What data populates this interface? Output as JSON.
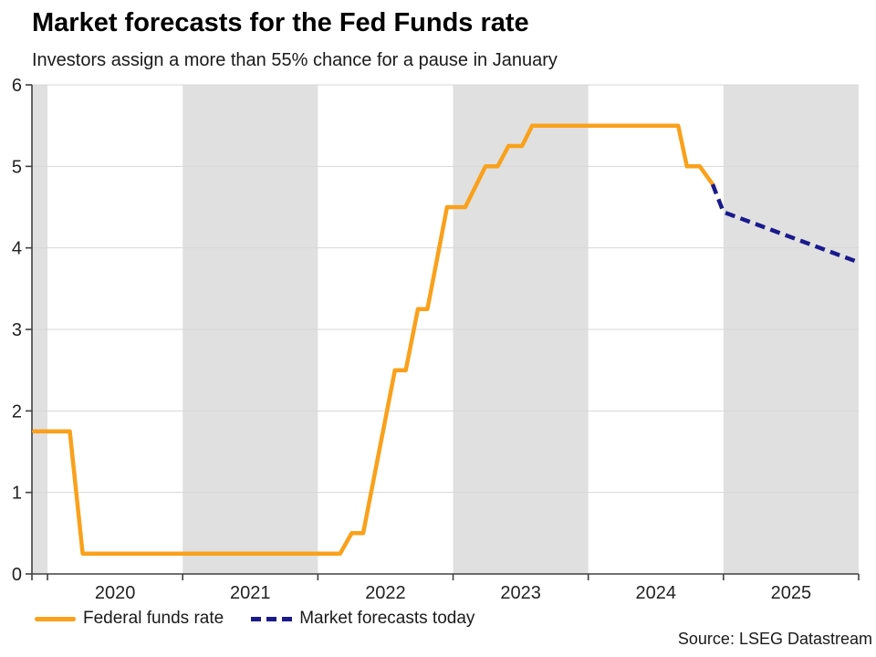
{
  "header": {
    "title": "Market forecasts for the Fed Funds rate",
    "subtitle": "Investors assign a more than 55% chance for a pause in January"
  },
  "footer": {
    "source": "Source: LSEG Datastream"
  },
  "legend": {
    "items": [
      {
        "label": "Federal funds rate",
        "style": "solid",
        "color": "#F9A11B"
      },
      {
        "label": "Market forecasts today",
        "style": "dashed",
        "color": "#1A1A8C"
      }
    ]
  },
  "colors": {
    "federal_funds_line": "#F9A11B",
    "forecast_line": "#1A1A8C",
    "year_band": "#E0E0E0",
    "gridline": "#D7D7D7",
    "axis": "#404040",
    "tick_text": "#222222"
  },
  "chart_data": {
    "type": "line",
    "title": "Market forecasts for the Fed Funds rate",
    "subtitle": "Investors assign a more than 55% chance for a pause in January",
    "xlabel": "",
    "ylabel": "",
    "ylim": [
      0,
      6
    ],
    "yticks": [
      0,
      1,
      2,
      3,
      4,
      5,
      6
    ],
    "ytick_labels": [
      "0",
      "1",
      "2",
      "3",
      "4",
      "5",
      "6"
    ],
    "x_range": [
      2019.885,
      2026.0
    ],
    "x_tick_years": [
      2020,
      2021,
      2022,
      2023,
      2024,
      2025
    ],
    "x_tick_labels": [
      "2020",
      "2021",
      "2022",
      "2023",
      "2024",
      "2025"
    ],
    "shaded_year_bands": [
      [
        2019.885,
        2020.0
      ],
      [
        2021.0,
        2022.0
      ],
      [
        2023.0,
        2024.0
      ],
      [
        2025.0,
        2026.0
      ]
    ],
    "grid": "horizontal",
    "legend_position": "bottom-left",
    "series": [
      {
        "name": "Federal funds rate",
        "style": "solid",
        "color": "#F9A11B",
        "points": [
          [
            2019.9,
            1.75
          ],
          [
            2020.165,
            1.75
          ],
          [
            2020.26,
            0.25
          ],
          [
            2022.165,
            0.25
          ],
          [
            2022.25,
            0.5
          ],
          [
            2022.335,
            0.5
          ],
          [
            2022.57,
            2.5
          ],
          [
            2022.65,
            2.5
          ],
          [
            2022.74,
            3.25
          ],
          [
            2022.81,
            3.25
          ],
          [
            2022.955,
            4.5
          ],
          [
            2023.09,
            4.5
          ],
          [
            2023.24,
            5.0
          ],
          [
            2023.33,
            5.0
          ],
          [
            2023.41,
            5.25
          ],
          [
            2023.51,
            5.25
          ],
          [
            2023.585,
            5.5
          ],
          [
            2024.665,
            5.5
          ],
          [
            2024.73,
            5.0
          ],
          [
            2024.825,
            5.0
          ],
          [
            2024.92,
            4.78
          ]
        ]
      },
      {
        "name": "Market forecasts today",
        "style": "dashed",
        "color": "#1A1A8C",
        "points": [
          [
            2024.92,
            4.78
          ],
          [
            2025.0,
            4.44
          ],
          [
            2025.99,
            3.83
          ]
        ]
      }
    ]
  }
}
